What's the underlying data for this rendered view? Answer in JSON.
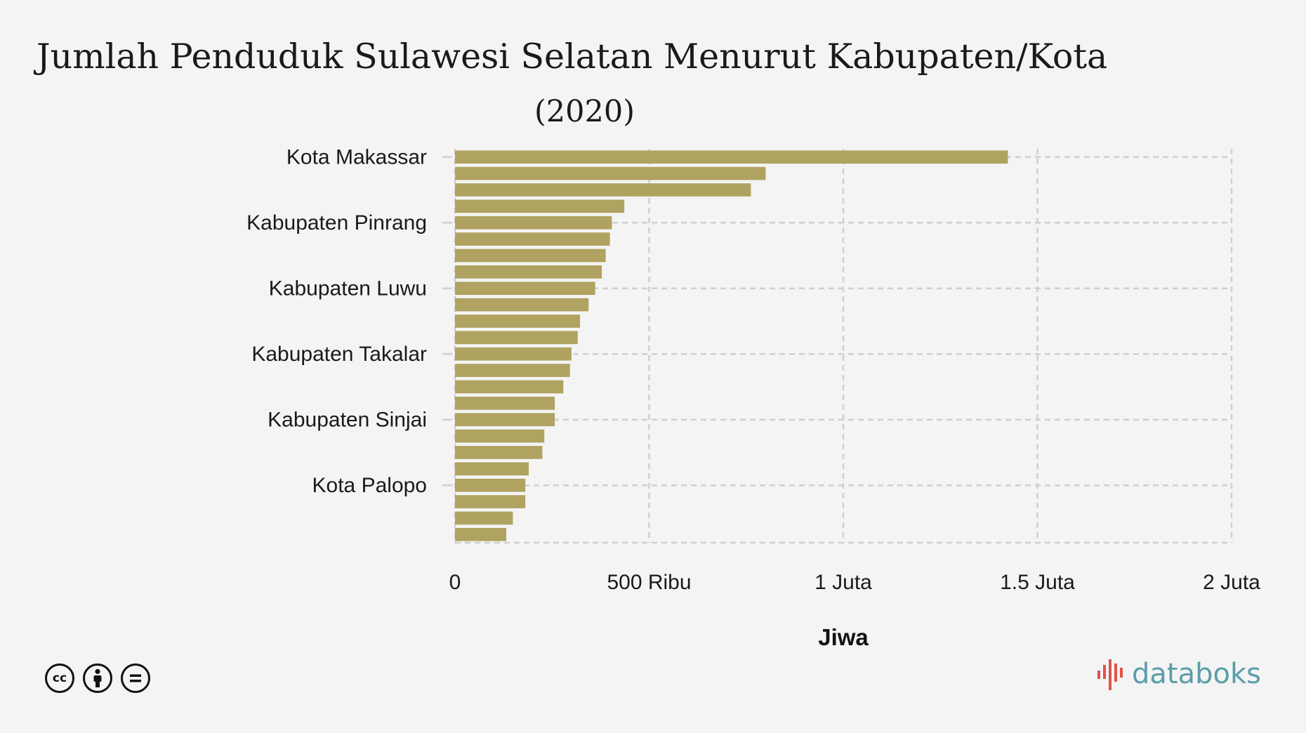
{
  "header": {
    "title": "Jumlah Penduduk Sulawesi Selatan Menurut Kabupaten/Kota",
    "subtitle": "(2020)"
  },
  "chart_data": {
    "type": "bar",
    "orientation": "horizontal",
    "title": "Jumlah Penduduk Sulawesi Selatan Menurut Kabupaten/Kota",
    "subtitle": "(2020)",
    "xlabel": "Jiwa",
    "ylabel": "",
    "xlim": [
      0,
      2000000
    ],
    "x_ticks": [
      0,
      500000,
      1000000,
      1500000,
      2000000
    ],
    "x_tick_labels": [
      "0",
      "500 Ribu",
      "1 Juta",
      "1.5 Juta",
      "2 Juta"
    ],
    "grid": true,
    "bar_color": "#b0a260",
    "categories": [
      "Kota Makassar",
      "",
      "",
      "",
      "Kabupaten Pinrang",
      "",
      "",
      "",
      "Kabupaten Luwu",
      "",
      "",
      "",
      "Kabupaten Takalar",
      "",
      "",
      "",
      "Kabupaten Sinjai",
      "",
      "",
      "",
      "Kota Palopo",
      "",
      "",
      ""
    ],
    "values": [
      1424000,
      800000,
      762000,
      436000,
      404000,
      399000,
      388000,
      378000,
      361000,
      344000,
      322000,
      316000,
      300000,
      296000,
      279000,
      257000,
      257000,
      230000,
      225000,
      190000,
      181000,
      181000,
      149000,
      132000
    ]
  },
  "footer": {
    "license_icons": [
      "cc-icon",
      "by-icon",
      "nd-icon"
    ],
    "license_icon_text": [
      "cc",
      "",
      "="
    ],
    "brand": "databoks",
    "brand_colors": [
      "#e0544a",
      "#5a9ea8"
    ]
  }
}
